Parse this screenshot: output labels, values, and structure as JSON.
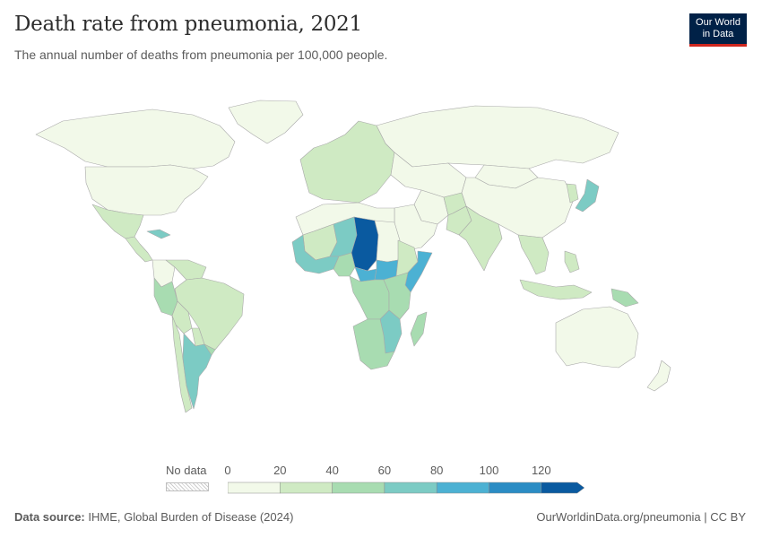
{
  "header": {
    "title": "Death rate from pneumonia, 2021",
    "subtitle": "The annual number of deaths from pneumonia per 100,000 people."
  },
  "logo": {
    "line1": "Our World",
    "line2": "in Data",
    "bg": "#002147",
    "accent": "#ce261e"
  },
  "legend": {
    "no_data_label": "No data",
    "ticks": [
      "0",
      "20",
      "40",
      "60",
      "80",
      "100",
      "120"
    ],
    "colors": [
      "#f2f9e9",
      "#cfeac3",
      "#a8dcb1",
      "#7ccbc4",
      "#4cb1d3",
      "#2b8cc4",
      "#0a5aa0"
    ]
  },
  "chart_data": {
    "type": "choropleth",
    "title": "Death rate from pneumonia, 2021",
    "subtitle": "The annual number of deaths from pneumonia per 100,000 people.",
    "unit": "deaths per 100,000 people",
    "scale_bins": [
      0,
      20,
      40,
      60,
      80,
      100,
      120
    ],
    "regions": [
      {
        "name": "Canada",
        "bin": 0
      },
      {
        "name": "United States",
        "bin": 0
      },
      {
        "name": "Greenland",
        "bin": 0
      },
      {
        "name": "Mexico",
        "bin": 1
      },
      {
        "name": "Central America",
        "bin": 1
      },
      {
        "name": "Cuba",
        "bin": 3
      },
      {
        "name": "Colombia",
        "bin": 0
      },
      {
        "name": "Venezuela",
        "bin": 1
      },
      {
        "name": "Brazil",
        "bin": 1
      },
      {
        "name": "Peru",
        "bin": 2
      },
      {
        "name": "Bolivia",
        "bin": 1
      },
      {
        "name": "Paraguay",
        "bin": 1
      },
      {
        "name": "Chile",
        "bin": 1
      },
      {
        "name": "Argentina",
        "bin": 3
      },
      {
        "name": "Uruguay",
        "bin": 2
      },
      {
        "name": "Europe",
        "bin": 1
      },
      {
        "name": "Russia",
        "bin": 0
      },
      {
        "name": "Central Asia",
        "bin": 0
      },
      {
        "name": "China",
        "bin": 0
      },
      {
        "name": "Mongolia",
        "bin": 0
      },
      {
        "name": "Japan",
        "bin": 3
      },
      {
        "name": "Korea",
        "bin": 1
      },
      {
        "name": "India",
        "bin": 1
      },
      {
        "name": "Pakistan",
        "bin": 1
      },
      {
        "name": "Afghanistan",
        "bin": 1
      },
      {
        "name": "Iran",
        "bin": 0
      },
      {
        "name": "Arabian Peninsula",
        "bin": 0
      },
      {
        "name": "Southeast Asia",
        "bin": 1
      },
      {
        "name": "Indonesia",
        "bin": 1
      },
      {
        "name": "Philippines",
        "bin": 1
      },
      {
        "name": "Papua New Guinea",
        "bin": 2
      },
      {
        "name": "Australia",
        "bin": 0
      },
      {
        "name": "New Zealand",
        "bin": 0
      },
      {
        "name": "North Africa",
        "bin": 0
      },
      {
        "name": "Mali",
        "bin": 1
      },
      {
        "name": "Niger",
        "bin": 3
      },
      {
        "name": "Chad",
        "bin": 6
      },
      {
        "name": "Sudan",
        "bin": 0
      },
      {
        "name": "West Africa",
        "bin": 3
      },
      {
        "name": "Nigeria",
        "bin": 2
      },
      {
        "name": "Central African Republic",
        "bin": 4
      },
      {
        "name": "South Sudan",
        "bin": 4
      },
      {
        "name": "Ethiopia",
        "bin": 1
      },
      {
        "name": "Somalia",
        "bin": 4
      },
      {
        "name": "Central Africa",
        "bin": 2
      },
      {
        "name": "East Africa",
        "bin": 2
      },
      {
        "name": "Mozambique",
        "bin": 3
      },
      {
        "name": "Southern Africa",
        "bin": 2
      },
      {
        "name": "Madagascar",
        "bin": 2
      }
    ]
  },
  "footer": {
    "source_label": "Data source:",
    "source_text": "IHME, Global Burden of Disease (2024)",
    "url": "OurWorldinData.org/pneumonia | CC BY"
  }
}
